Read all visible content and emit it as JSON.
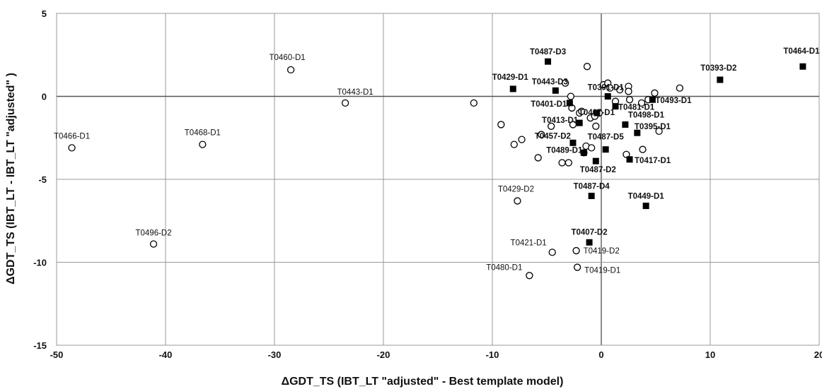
{
  "chart_data": {
    "type": "scatter",
    "title": "",
    "xlabel": "ΔGDT_TS (IBT_LT \"adjusted\" - Best template model)",
    "ylabel": "ΔGDT_TS (IBT_LT - IBT_LT \"adjusted\" )",
    "xlim": [
      -50,
      20
    ],
    "ylim": [
      -15,
      5
    ],
    "xticks": [
      -50,
      -40,
      -30,
      -20,
      -10,
      0,
      10,
      20
    ],
    "yticks": [
      -15,
      -10,
      -5,
      0,
      5
    ],
    "grid": true,
    "legend": "none",
    "series": [
      {
        "marker": "open-circle",
        "points": [
          {
            "x": -48.6,
            "y": -3.1,
            "label": "T0466-D1"
          },
          {
            "x": -41.1,
            "y": -8.9,
            "label": "T0496-D2"
          },
          {
            "x": -36.6,
            "y": -2.9,
            "label": "T0468-D1"
          },
          {
            "x": -28.5,
            "y": 1.6,
            "label": "T0460-D1"
          },
          {
            "x": -23.5,
            "y": -0.4,
            "label": "T0443-D1"
          },
          {
            "x": -11.7,
            "y": -0.4,
            "label": ""
          },
          {
            "x": -9.2,
            "y": -1.7,
            "label": ""
          },
          {
            "x": -7.7,
            "y": -6.3,
            "label": "T0429-D2"
          },
          {
            "x": -8.0,
            "y": -2.9,
            "label": ""
          },
          {
            "x": -7.3,
            "y": -2.6,
            "label": ""
          },
          {
            "x": -6.6,
            "y": -10.8,
            "label": "T0480-D1"
          },
          {
            "x": -5.8,
            "y": -3.7,
            "label": ""
          },
          {
            "x": -5.5,
            "y": -2.3,
            "label": ""
          },
          {
            "x": -4.5,
            "y": -9.4,
            "label": "T0421-D1"
          },
          {
            "x": -4.6,
            "y": -1.8,
            "label": ""
          },
          {
            "x": -3.6,
            "y": -4.0,
            "label": ""
          },
          {
            "x": -3.3,
            "y": 0.8,
            "label": ""
          },
          {
            "x": -3.0,
            "y": -4.0,
            "label": ""
          },
          {
            "x": -2.8,
            "y": 0.0,
            "label": ""
          },
          {
            "x": -2.7,
            "y": -0.7,
            "label": ""
          },
          {
            "x": -2.6,
            "y": -1.7,
            "label": ""
          },
          {
            "x": -2.3,
            "y": -9.3,
            "label": "T0419-D2"
          },
          {
            "x": -2.2,
            "y": -10.3,
            "label": "T0419-D1"
          },
          {
            "x": -2.0,
            "y": -1.0,
            "label": ""
          },
          {
            "x": -1.8,
            "y": -0.9,
            "label": ""
          },
          {
            "x": -1.6,
            "y": -3.4,
            "label": ""
          },
          {
            "x": -1.4,
            "y": -3.0,
            "label": ""
          },
          {
            "x": -1.3,
            "y": 1.8,
            "label": ""
          },
          {
            "x": -1.0,
            "y": -1.3,
            "label": ""
          },
          {
            "x": -0.9,
            "y": -3.1,
            "label": ""
          },
          {
            "x": -0.6,
            "y": -1.2,
            "label": ""
          },
          {
            "x": -0.5,
            "y": -1.8,
            "label": ""
          },
          {
            "x": -0.2,
            "y": -1.0,
            "label": ""
          },
          {
            "x": 0.2,
            "y": 0.7,
            "label": ""
          },
          {
            "x": 0.6,
            "y": 0.8,
            "label": ""
          },
          {
            "x": 0.8,
            "y": 0.5,
            "label": ""
          },
          {
            "x": 1.3,
            "y": -0.3,
            "label": ""
          },
          {
            "x": 1.7,
            "y": 0.4,
            "label": ""
          },
          {
            "x": 2.3,
            "y": -3.5,
            "label": ""
          },
          {
            "x": 2.5,
            "y": 0.6,
            "label": ""
          },
          {
            "x": 2.5,
            "y": 0.3,
            "label": ""
          },
          {
            "x": 2.6,
            "y": -0.2,
            "label": ""
          },
          {
            "x": 3.7,
            "y": -0.4,
            "label": ""
          },
          {
            "x": 3.8,
            "y": -3.2,
            "label": ""
          },
          {
            "x": 4.3,
            "y": -0.2,
            "label": ""
          },
          {
            "x": 4.9,
            "y": 0.2,
            "label": ""
          },
          {
            "x": 5.3,
            "y": -2.1,
            "label": ""
          },
          {
            "x": 7.2,
            "y": 0.5,
            "label": ""
          }
        ]
      },
      {
        "marker": "filled-square",
        "points": [
          {
            "x": 18.5,
            "y": 1.8,
            "label": "T0464-D1"
          },
          {
            "x": 10.9,
            "y": 1.0,
            "label": "T0393-D2"
          },
          {
            "x": -4.9,
            "y": 2.1,
            "label": "T0487-D3"
          },
          {
            "x": -8.1,
            "y": 0.45,
            "label": "T0429-D1"
          },
          {
            "x": -4.2,
            "y": 0.35,
            "label": "T0443-D3"
          },
          {
            "x": -2.9,
            "y": -0.4,
            "label": "T0401-D1"
          },
          {
            "x": 0.6,
            "y": 0.0,
            "label": "T0391-D1"
          },
          {
            "x": -0.4,
            "y": -1.0,
            "label": "T0407-D1"
          },
          {
            "x": 1.3,
            "y": -0.6,
            "label": "T0481-D1"
          },
          {
            "x": 4.7,
            "y": -0.2,
            "label": "T0493-D1"
          },
          {
            "x": -2.0,
            "y": -1.6,
            "label": "T0413-D1"
          },
          {
            "x": 2.2,
            "y": -1.7,
            "label": "T0498-D1"
          },
          {
            "x": 3.3,
            "y": -2.2,
            "label": "T0395-D1"
          },
          {
            "x": -2.6,
            "y": -2.8,
            "label": "T0457-D2"
          },
          {
            "x": 0.4,
            "y": -3.2,
            "label": "T0487-D5"
          },
          {
            "x": -1.6,
            "y": -3.4,
            "label": "T0489-D1"
          },
          {
            "x": -0.5,
            "y": -3.9,
            "label": "T0487-D2"
          },
          {
            "x": 2.6,
            "y": -3.8,
            "label": "T0417-D1"
          },
          {
            "x": -0.9,
            "y": -6.0,
            "label": "T0487-D4"
          },
          {
            "x": 4.1,
            "y": -6.6,
            "label": "T0449-D1"
          },
          {
            "x": -1.1,
            "y": -8.8,
            "label": "T0407-D2"
          }
        ]
      }
    ]
  }
}
